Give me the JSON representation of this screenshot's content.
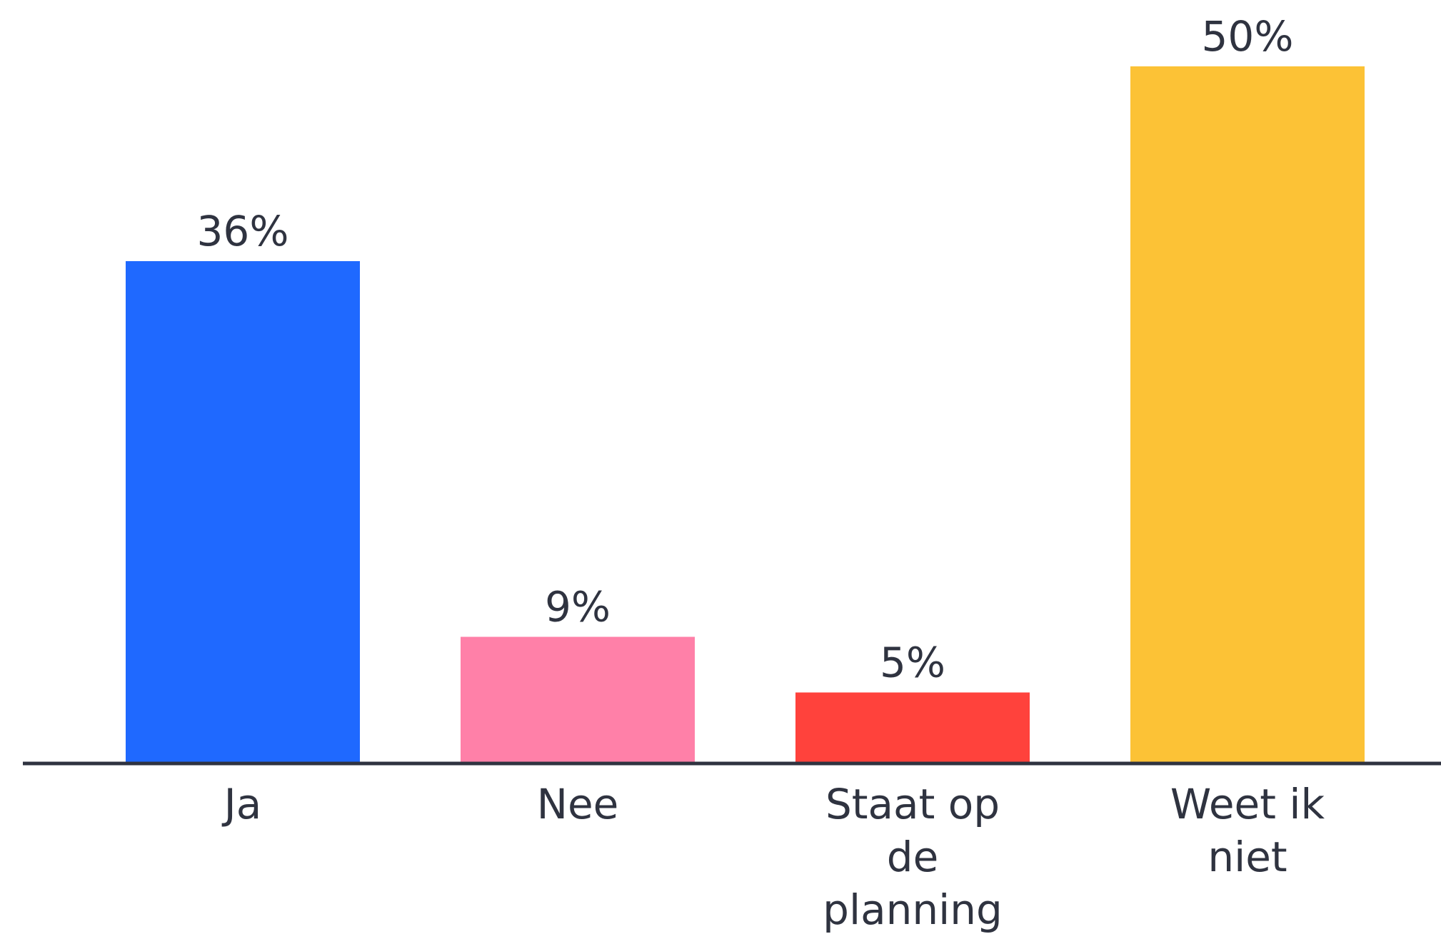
{
  "chart_data": {
    "type": "bar",
    "title": "",
    "xlabel": "",
    "ylabel": "",
    "categories": [
      "Ja",
      "Nee",
      "Staat op de planning",
      "Weet ik niet"
    ],
    "category_lines": [
      [
        "Ja"
      ],
      [
        "Nee"
      ],
      [
        "Staat op",
        "de",
        "planning"
      ],
      [
        "Weet ik",
        "niet"
      ]
    ],
    "values": [
      36,
      9,
      5,
      50
    ],
    "value_labels": [
      "36%",
      "9%",
      "5%",
      "50%"
    ],
    "unit": "%",
    "ylim": [
      0,
      50
    ],
    "grid": false,
    "legend": "none",
    "colors": [
      "#1f69ff",
      "#ff80a8",
      "#ff423c",
      "#fcc236"
    ],
    "axis_color": "#2f3340",
    "text_color": "#2f3340"
  }
}
